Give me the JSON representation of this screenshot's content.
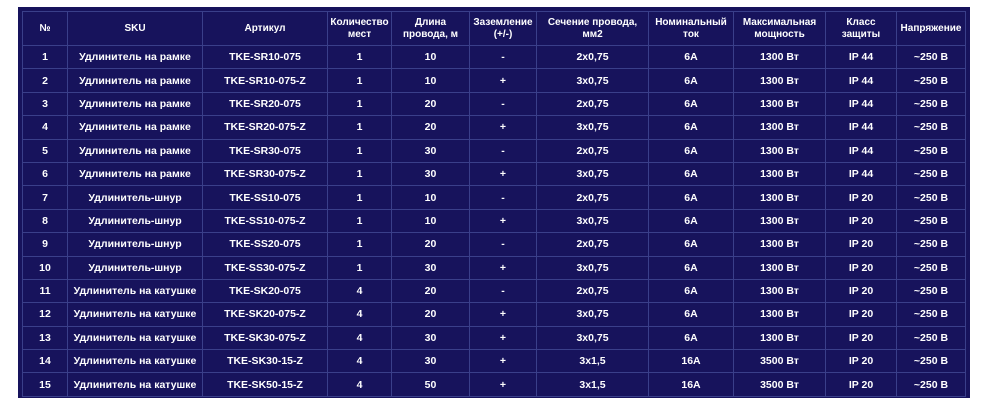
{
  "headers": [
    "№",
    "SKU",
    "Артикул",
    "Количество мест",
    "Длина провода, м",
    "Заземление (+/-)",
    "Сечение провода, мм2",
    "Номинальный ток",
    "Максимальная мощность",
    "Класс защиты",
    "Напряжение"
  ],
  "rows": [
    [
      "1",
      "Удлинитель на рамке",
      "TKE-SR10-075",
      "1",
      "10",
      "-",
      "2х0,75",
      "6А",
      "1300 Вт",
      "IP 44",
      "~250 В"
    ],
    [
      "2",
      "Удлинитель на рамке",
      "TKE-SR10-075-Z",
      "1",
      "10",
      "+",
      "3х0,75",
      "6А",
      "1300 Вт",
      "IP 44",
      "~250 В"
    ],
    [
      "3",
      "Удлинитель на рамке",
      "TKE-SR20-075",
      "1",
      "20",
      "-",
      "2х0,75",
      "6А",
      "1300 Вт",
      "IP 44",
      "~250 В"
    ],
    [
      "4",
      "Удлинитель на рамке",
      "TKE-SR20-075-Z",
      "1",
      "20",
      "+",
      "3х0,75",
      "6А",
      "1300 Вт",
      "IP 44",
      "~250 В"
    ],
    [
      "5",
      "Удлинитель на рамке",
      "TKE-SR30-075",
      "1",
      "30",
      "-",
      "2х0,75",
      "6А",
      "1300 Вт",
      "IP 44",
      "~250 В"
    ],
    [
      "6",
      "Удлинитель на рамке",
      "TKE-SR30-075-Z",
      "1",
      "30",
      "+",
      "3х0,75",
      "6А",
      "1300 Вт",
      "IP 44",
      "~250 В"
    ],
    [
      "7",
      "Удлинитель-шнур",
      "TKE-SS10-075",
      "1",
      "10",
      "-",
      "2х0,75",
      "6А",
      "1300 Вт",
      "IP 20",
      "~250 В"
    ],
    [
      "8",
      "Удлинитель-шнур",
      "TKE-SS10-075-Z",
      "1",
      "10",
      "+",
      "3х0,75",
      "6А",
      "1300 Вт",
      "IP 20",
      "~250 В"
    ],
    [
      "9",
      "Удлинитель-шнур",
      "TKE-SS20-075",
      "1",
      "20",
      "-",
      "2х0,75",
      "6А",
      "1300 Вт",
      "IP 20",
      "~250 В"
    ],
    [
      "10",
      "Удлинитель-шнур",
      "TKE-SS30-075-Z",
      "1",
      "30",
      "+",
      "3х0,75",
      "6А",
      "1300 Вт",
      "IP 20",
      "~250 В"
    ],
    [
      "11",
      "Удлинитель на катушке",
      "TKE-SK20-075",
      "4",
      "20",
      "-",
      "2х0,75",
      "6А",
      "1300 Вт",
      "IP 20",
      "~250 В"
    ],
    [
      "12",
      "Удлинитель на катушке",
      "TKE-SK20-075-Z",
      "4",
      "20",
      "+",
      "3х0,75",
      "6А",
      "1300 Вт",
      "IP 20",
      "~250 В"
    ],
    [
      "13",
      "Удлинитель на катушке",
      "TKE-SK30-075-Z",
      "4",
      "30",
      "+",
      "3х0,75",
      "6А",
      "1300 Вт",
      "IP 20",
      "~250 В"
    ],
    [
      "14",
      "Удлинитель на катушке",
      "TKE-SK30-15-Z",
      "4",
      "30",
      "+",
      "3х1,5",
      "16А",
      "3500 Вт",
      "IP 20",
      "~250 В"
    ],
    [
      "15",
      "Удлинитель на катушке",
      "TKE-SK50-15-Z",
      "4",
      "50",
      "+",
      "3х1,5",
      "16А",
      "3500 Вт",
      "IP 20",
      "~250 В"
    ]
  ],
  "colors": {
    "background": "#17135c",
    "grid": "#3a3f8a",
    "text": "#ffffff"
  }
}
